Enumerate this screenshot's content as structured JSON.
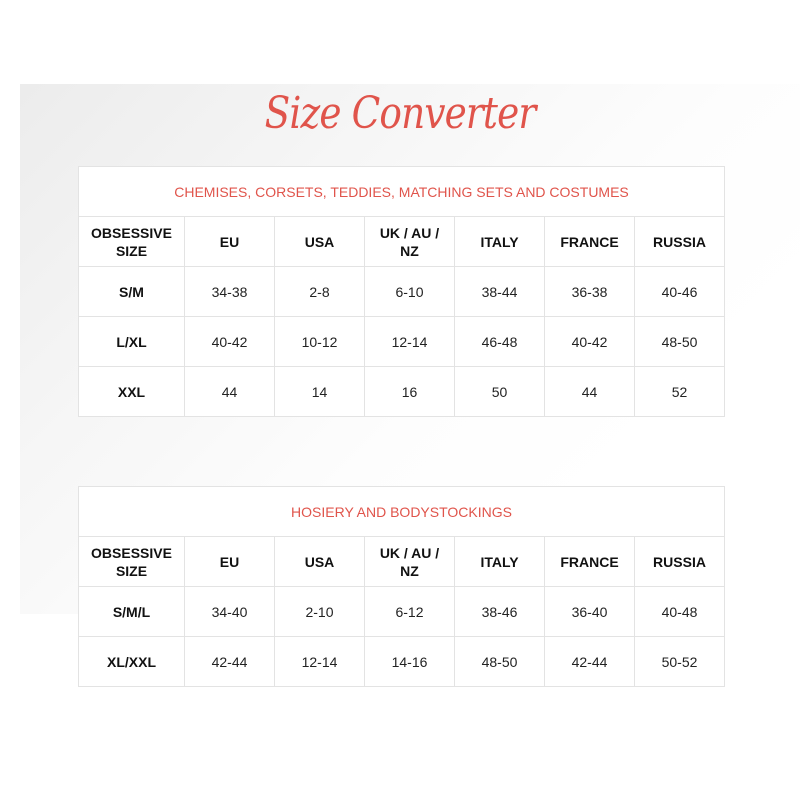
{
  "title": "Size Converter",
  "accent_color": "#e0544b",
  "columns": [
    "OBSESSIVE SIZE",
    "EU",
    "USA",
    "UK / AU / NZ",
    "ITALY",
    "FRANCE",
    "RUSSIA"
  ],
  "tables": [
    {
      "category": "CHEMISES, CORSETS, TEDDIES, MATCHING SETS AND COSTUMES",
      "rows": [
        [
          "S/M",
          "34-38",
          "2-8",
          "6-10",
          "38-44",
          "36-38",
          "40-46"
        ],
        [
          "L/XL",
          "40-42",
          "10-12",
          "12-14",
          "46-48",
          "40-42",
          "48-50"
        ],
        [
          "XXL",
          "44",
          "14",
          "16",
          "50",
          "44",
          "52"
        ]
      ]
    },
    {
      "category": "HOSIERY AND BODYSTOCKINGS",
      "rows": [
        [
          "S/M/L",
          "34-40",
          "2-10",
          "6-12",
          "38-46",
          "36-40",
          "40-48"
        ],
        [
          "XL/XXL",
          "42-44",
          "12-14",
          "14-16",
          "48-50",
          "42-44",
          "50-52"
        ]
      ]
    }
  ]
}
